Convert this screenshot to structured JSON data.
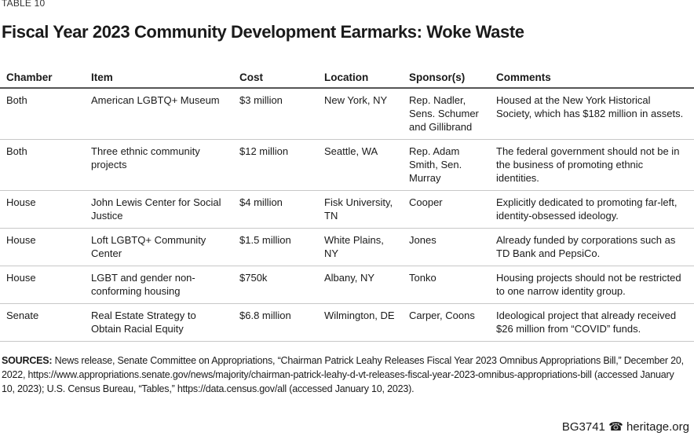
{
  "label": "TABLE 10",
  "title": "Fiscal Year 2023 Community Development Earmarks: Woke Waste",
  "table": {
    "headers": [
      "Chamber",
      "Item",
      "Cost",
      "Location",
      "Sponsor(s)",
      "Comments"
    ],
    "rows": [
      [
        "Both",
        "American LGBTQ+ Museum",
        "$3 million",
        "New York, NY",
        "Rep. Nadler, Sens. Schumer and Gillibrand",
        "Housed at the New York Historical Society, which has $182 million in assets."
      ],
      [
        "Both",
        "Three ethnic community projects",
        "$12 million",
        "Seattle, WA",
        "Rep. Adam Smith, Sen. Murray",
        "The federal government should not be in the business of promoting ethnic identities."
      ],
      [
        "House",
        "John Lewis Center for Social Justice",
        "$4 million",
        "Fisk University, TN",
        "Cooper",
        "Explicitly dedicated to promoting far-left, identity-obsessed ideology."
      ],
      [
        "House",
        "Loft LGBTQ+ Community Center",
        "$1.5 million",
        "White Plains, NY",
        "Jones",
        "Already funded by corporations such as TD Bank and PepsiCo."
      ],
      [
        "House",
        "LGBT and gender non-conforming housing",
        "$750k",
        "Albany, NY",
        "Tonko",
        "Housing projects should not be restricted to one narrow identity group."
      ],
      [
        "Senate",
        "Real Estate Strategy to Obtain Racial Equity",
        "$6.8 million",
        "Wilmington, DE",
        "Carper, Coons",
        "Ideological project that already received $26 million from “COVID” funds."
      ]
    ]
  },
  "sources": {
    "label": "SOURCES:",
    "text": " News release, Senate Committee on Appropriations, “Chairman Patrick Leahy Releases Fiscal Year 2023 Omnibus Appropriations Bill,” December 20, 2022, https://www.appropriations.senate.gov/news/majority/chairman-patrick-leahy-d-vt-releases-fiscal-year-2023-omnibus-appropriations-bill (accessed January 10, 2023); U.S. Census Bureau, “Tables,” https://data.census.gov/all (accessed January 10, 2023)."
  },
  "footer": {
    "code": "BG3741",
    "icon": "liberty-bell-icon",
    "site": "heritage.org"
  }
}
